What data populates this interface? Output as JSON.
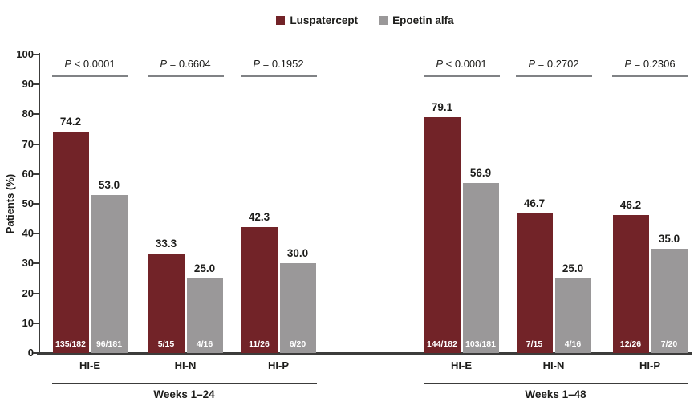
{
  "legend": {
    "items": [
      {
        "label": "Luspatercept",
        "color": "#722328"
      },
      {
        "label": "Epoetin alfa",
        "color": "#9A9899"
      }
    ]
  },
  "y_axis": {
    "label": "Patients (%)",
    "ticks": [
      0,
      10,
      20,
      30,
      40,
      50,
      60,
      70,
      80,
      90,
      100
    ]
  },
  "colors": {
    "luspatercept": "#722328",
    "epoetin": "#9A9899",
    "axis": "#3C3C3B",
    "p_line": "#808285",
    "text": "#1D1D1B"
  },
  "chart_data": {
    "type": "bar",
    "title": "",
    "xlabel": "",
    "ylabel": "Patients (%)",
    "ylim": [
      0,
      100
    ],
    "grid": false,
    "legend_position": "top-center",
    "series_names": [
      "Luspatercept",
      "Epoetin alfa"
    ],
    "groups": [
      {
        "label": "Weeks 1–24",
        "categories": [
          "HI-E",
          "HI-N",
          "HI-P"
        ],
        "p_values": [
          "P < 0.0001",
          "P = 0.6604",
          "P = 0.1952"
        ],
        "series": [
          {
            "name": "Luspatercept",
            "values": [
              74.2,
              33.3,
              42.3
            ],
            "fractions": [
              "135/182",
              "5/15",
              "11/26"
            ]
          },
          {
            "name": "Epoetin alfa",
            "values": [
              53.0,
              25.0,
              30.0
            ],
            "fractions": [
              "96/181",
              "4/16",
              "6/20"
            ]
          }
        ]
      },
      {
        "label": "Weeks 1–48",
        "categories": [
          "HI-E",
          "HI-N",
          "HI-P"
        ],
        "p_values": [
          "P < 0.0001",
          "P = 0.2702",
          "P = 0.2306"
        ],
        "series": [
          {
            "name": "Luspatercept",
            "values": [
              79.1,
              46.7,
              46.2
            ],
            "fractions": [
              "144/182",
              "7/15",
              "12/26"
            ]
          },
          {
            "name": "Epoetin alfa",
            "values": [
              56.9,
              25.0,
              35.0
            ],
            "fractions": [
              "103/181",
              "4/16",
              "7/20"
            ]
          }
        ]
      }
    ]
  }
}
